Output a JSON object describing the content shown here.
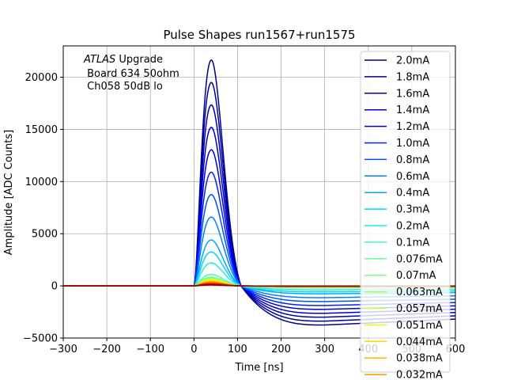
{
  "chart_data": {
    "type": "line",
    "title": "Pulse Shapes run1567+run1575",
    "xlabel": "Time [ns]",
    "ylabel": "Amplitude [ADC Counts]",
    "xlim": [
      -300,
      600
    ],
    "ylim": [
      -5000,
      23000
    ],
    "x_ticks": [
      -300,
      -200,
      -100,
      0,
      100,
      200,
      300,
      400,
      500,
      600
    ],
    "x_tick_labels": [
      "−300",
      "−200",
      "−100",
      "0",
      "100",
      "200",
      "300",
      "400",
      "500",
      "600"
    ],
    "y_ticks": [
      -5000,
      0,
      5000,
      10000,
      15000,
      20000
    ],
    "y_tick_labels": [
      "−5000",
      "0",
      "5000",
      "10000",
      "15000",
      "20000"
    ],
    "grid": true,
    "legend_position": "right",
    "annotation": {
      "italic": "ATLAS",
      "line1_rest": " Upgrade",
      "line2": " Board 634 50ohm",
      "line3": " Ch058 50dB lo"
    },
    "pulse_model": {
      "onset_x": 0,
      "peak_x": 40,
      "zero_cross_x": 108,
      "undershoot_min_x": 300
    },
    "series": [
      {
        "name": "2.0mA",
        "peak": 21650,
        "undershoot": -3750,
        "color": "#00008f"
      },
      {
        "name": "1.8mA",
        "peak": 19500,
        "undershoot": -3380,
        "color": "#000099"
      },
      {
        "name": "1.6mA",
        "peak": 17350,
        "undershoot": -3000,
        "color": "#0000b3"
      },
      {
        "name": "1.4mA",
        "peak": 15200,
        "undershoot": -2630,
        "color": "#0000cc"
      },
      {
        "name": "1.2mA",
        "peak": 13050,
        "undershoot": -2250,
        "color": "#0000e6"
      },
      {
        "name": "1.0mA",
        "peak": 10900,
        "undershoot": -1880,
        "color": "#0020ff"
      },
      {
        "name": "0.8mA",
        "peak": 8750,
        "undershoot": -1500,
        "color": "#0050ff"
      },
      {
        "name": "0.6mA",
        "peak": 6600,
        "undershoot": -1130,
        "color": "#0080ff"
      },
      {
        "name": "0.4mA",
        "peak": 4400,
        "undershoot": -760,
        "color": "#00a8ff"
      },
      {
        "name": "0.3mA",
        "peak": 3250,
        "undershoot": -570,
        "color": "#00d4ff"
      },
      {
        "name": "0.2mA",
        "peak": 2200,
        "undershoot": -380,
        "color": "#1ef0e0"
      },
      {
        "name": "0.1mA",
        "peak": 1100,
        "undershoot": -190,
        "color": "#3effb8"
      },
      {
        "name": "0.076mA",
        "peak": 830,
        "undershoot": -145,
        "color": "#5cff9a"
      },
      {
        "name": "0.07mA",
        "peak": 770,
        "undershoot": -130,
        "color": "#7cff7a"
      },
      {
        "name": "0.063mA",
        "peak": 690,
        "undershoot": -120,
        "color": "#a4ff52"
      },
      {
        "name": "0.057mA",
        "peak": 620,
        "undershoot": -105,
        "color": "#c8ff2e"
      },
      {
        "name": "0.051mA",
        "peak": 560,
        "undershoot": -95,
        "color": "#ecff0a"
      },
      {
        "name": "0.044mA",
        "peak": 480,
        "undershoot": -82,
        "color": "#ffd800"
      },
      {
        "name": "0.038mA",
        "peak": 420,
        "undershoot": -70,
        "color": "#ffb400"
      },
      {
        "name": "0.032mA",
        "peak": 350,
        "undershoot": -60,
        "color": "#ff9400"
      },
      {
        "name": "",
        "peak": 300,
        "undershoot": -50,
        "color": "#ff6a00"
      },
      {
        "name": "",
        "peak": 240,
        "undershoot": -40,
        "color": "#ff3c00"
      },
      {
        "name": "",
        "peak": 180,
        "undershoot": -30,
        "color": "#e00000"
      },
      {
        "name": "",
        "peak": 120,
        "undershoot": -20,
        "color": "#b40000"
      },
      {
        "name": "",
        "peak": 80,
        "undershoot": -15,
        "color": "#800000"
      }
    ]
  }
}
